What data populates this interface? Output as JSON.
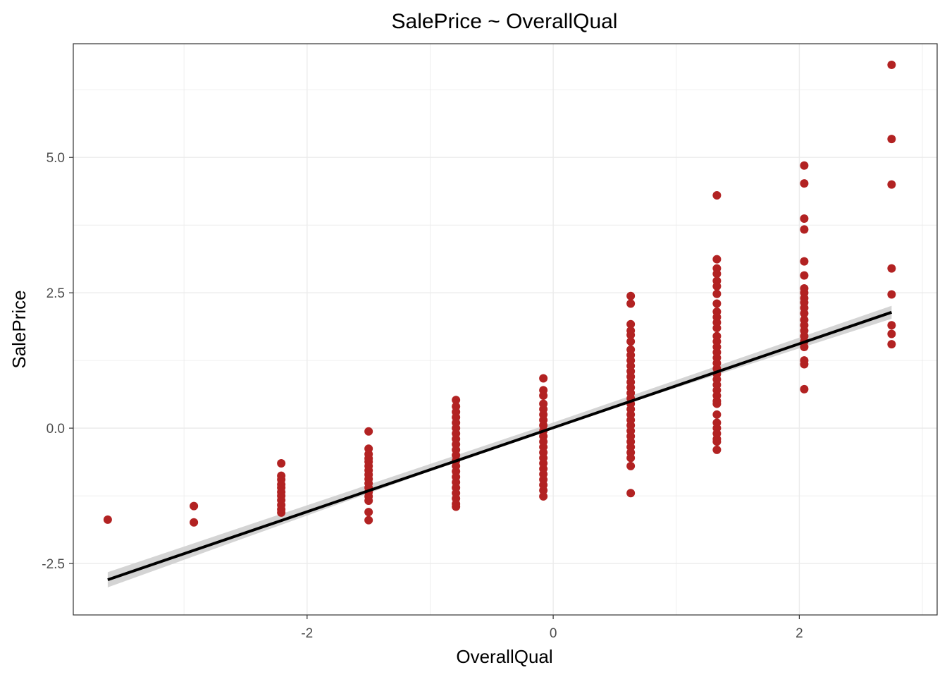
{
  "chart_data": {
    "type": "scatter",
    "title": "SalePrice ~ OverallQual",
    "xlabel": "OverallQual",
    "ylabel": "SalePrice",
    "xlim": [
      -3.9,
      3.12
    ],
    "ylim": [
      -3.45,
      7.1
    ],
    "x_ticks": [
      -2,
      0,
      2
    ],
    "x_tick_labels": [
      "-2",
      "0",
      "2"
    ],
    "y_ticks": [
      -2.5,
      0.0,
      2.5,
      5.0
    ],
    "y_tick_labels": [
      "-2.5",
      "0.0",
      "2.5",
      "5.0"
    ],
    "grid": true,
    "legend": "none",
    "point_color": "#b22222",
    "line_color": "#000000",
    "band_color": "#cccccc",
    "points": [
      {
        "x": -3.62,
        "y": [
          -1.69
        ]
      },
      {
        "x": -2.92,
        "y": [
          -1.44,
          -1.74
        ]
      },
      {
        "x": -2.21,
        "y": [
          -0.65,
          -0.88,
          -0.95,
          -1.04,
          -1.1,
          -1.18,
          -1.25,
          -1.33,
          -1.42,
          -1.5,
          -1.56
        ]
      },
      {
        "x": -1.5,
        "y": [
          -0.06,
          -0.38,
          -0.48,
          -0.56,
          -0.62,
          -0.7,
          -0.78,
          -0.86,
          -0.94,
          -1.02,
          -1.1,
          -1.18,
          -1.26,
          -1.34,
          -1.55,
          -1.7
        ]
      },
      {
        "x": -0.79,
        "y": [
          0.52,
          0.4,
          0.3,
          0.2,
          0.1,
          0.0,
          -0.1,
          -0.2,
          -0.3,
          -0.4,
          -0.5,
          -0.6,
          -0.7,
          -0.8,
          -0.9,
          -1.0,
          -1.1,
          -1.2,
          -1.3,
          -1.4,
          -1.45
        ]
      },
      {
        "x": -0.08,
        "y": [
          0.92,
          0.7,
          0.6,
          0.45,
          0.35,
          0.25,
          0.15,
          0.05,
          -0.05,
          -0.15,
          -0.25,
          -0.35,
          -0.45,
          -0.55,
          -0.65,
          -0.75,
          -0.85,
          -0.95,
          -1.05,
          -1.15,
          -1.26
        ]
      },
      {
        "x": 0.63,
        "y": [
          2.44,
          2.3,
          1.92,
          1.8,
          1.72,
          1.6,
          1.45,
          1.35,
          1.25,
          1.15,
          1.05,
          0.95,
          0.85,
          0.75,
          0.65,
          0.55,
          0.45,
          0.35,
          0.25,
          0.15,
          0.05,
          -0.05,
          -0.15,
          -0.25,
          -0.35,
          -0.45,
          -0.55,
          -0.7,
          -1.2
        ]
      },
      {
        "x": 1.33,
        "y": [
          4.3,
          3.12,
          2.95,
          2.85,
          2.72,
          2.62,
          2.48,
          2.3,
          2.15,
          2.05,
          1.95,
          1.85,
          1.7,
          1.6,
          1.5,
          1.4,
          1.3,
          1.2,
          1.1,
          1.0,
          0.9,
          0.8,
          0.7,
          0.6,
          0.5,
          0.45,
          0.25,
          0.1,
          0.0,
          -0.1,
          -0.2,
          -0.25,
          -0.4
        ]
      },
      {
        "x": 2.04,
        "y": [
          4.85,
          4.52,
          3.87,
          3.67,
          3.08,
          2.82,
          2.58,
          2.5,
          2.4,
          2.32,
          2.22,
          2.12,
          2.0,
          1.9,
          1.8,
          1.7,
          1.6,
          1.5,
          1.25,
          1.18,
          0.72
        ]
      },
      {
        "x": 2.75,
        "y": [
          6.71,
          5.34,
          4.5,
          2.95,
          2.47,
          1.9,
          1.74,
          1.55
        ]
      }
    ],
    "fit_line": {
      "x": [
        -3.62,
        2.75
      ],
      "y": [
        -2.8,
        2.14
      ]
    },
    "confidence_band": {
      "x": [
        -3.62,
        -0.08,
        2.75
      ],
      "upper": [
        -2.66,
        0.04,
        2.26
      ],
      "lower": [
        -2.94,
        -0.04,
        2.02
      ]
    }
  }
}
